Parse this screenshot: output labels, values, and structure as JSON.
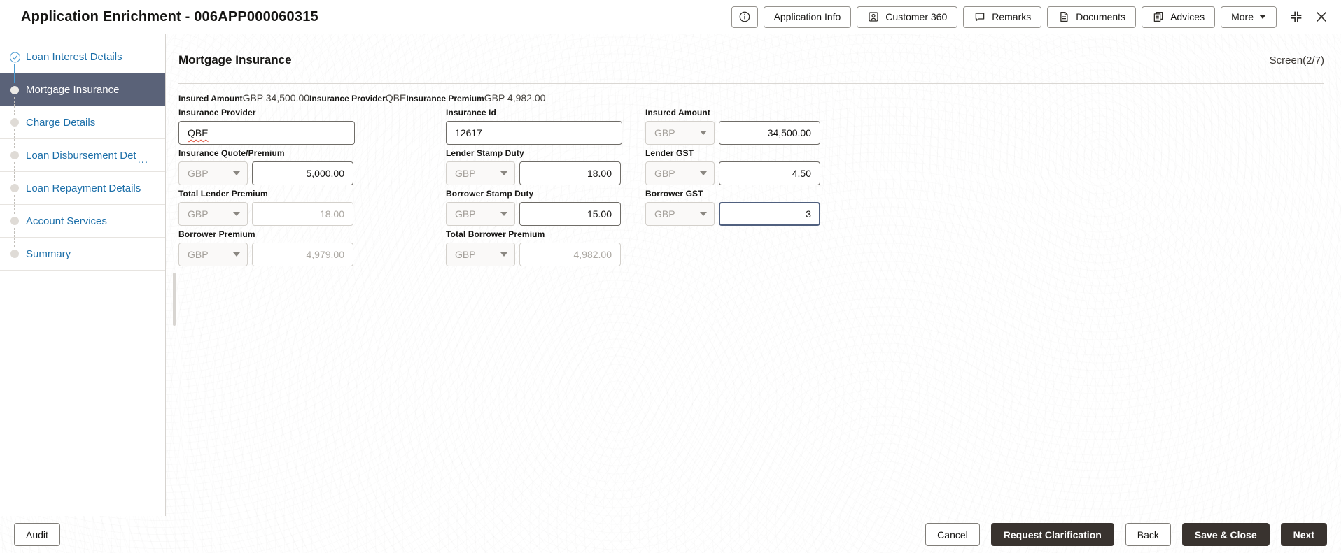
{
  "header": {
    "title": "Application Enrichment - 006APP000060315",
    "actions": {
      "application_info": "Application Info",
      "customer_360": "Customer 360",
      "remarks": "Remarks",
      "documents": "Documents",
      "advices": "Advices",
      "more": "More"
    }
  },
  "sidebar": {
    "items": [
      {
        "label": "Loan Interest Details",
        "state": "done"
      },
      {
        "label": "Mortgage Insurance",
        "state": "active"
      },
      {
        "label": "Charge Details",
        "state": "pending"
      },
      {
        "label": "Loan Disbursement Det",
        "state": "pending",
        "truncated": true,
        "truncated_indicator": "..."
      },
      {
        "label": "Loan Repayment Details",
        "state": "pending"
      },
      {
        "label": "Account Services",
        "state": "pending"
      },
      {
        "label": "Summary",
        "state": "pending"
      }
    ]
  },
  "content": {
    "heading": "Mortgage Insurance",
    "screen_indicator": "Screen(2/7)",
    "summary": [
      {
        "label": "Insured Amount ",
        "value": "GBP 34,500.00"
      },
      {
        "label": "Insurance Provider ",
        "value": "QBE"
      },
      {
        "label": "Insurance Premium ",
        "value": "GBP 4,982.00"
      }
    ],
    "fields": [
      {
        "label": "Insurance Provider",
        "type": "text",
        "value": "QBE",
        "state": "enabled",
        "squiggle": true
      },
      {
        "label": "Insurance Id",
        "type": "text",
        "value": "12617",
        "state": "enabled"
      },
      {
        "label": "Insured Amount",
        "type": "amount",
        "currency": "GBP",
        "value": "34,500.00",
        "state": "enabled"
      },
      {
        "label": "Insurance Quote/Premium",
        "type": "amount",
        "currency": "GBP",
        "value": "5,000.00",
        "state": "enabled"
      },
      {
        "label": "Lender Stamp Duty",
        "type": "amount",
        "currency": "GBP",
        "value": "18.00",
        "state": "enabled"
      },
      {
        "label": "Lender GST",
        "type": "amount",
        "currency": "GBP",
        "value": "4.50",
        "state": "enabled"
      },
      {
        "label": "Total Lender Premium",
        "type": "amount",
        "currency": "GBP",
        "value": "18.00",
        "state": "disabled"
      },
      {
        "label": "Borrower Stamp Duty",
        "type": "amount",
        "currency": "GBP",
        "value": "15.00",
        "state": "enabled"
      },
      {
        "label": "Borrower GST",
        "type": "amount",
        "currency": "GBP",
        "value": "3",
        "state": "focused"
      },
      {
        "label": "Borrower Premium",
        "type": "amount",
        "currency": "GBP",
        "value": "4,979.00",
        "state": "disabled"
      },
      {
        "label": "Total Borrower Premium",
        "type": "amount",
        "currency": "GBP",
        "value": "4,982.00",
        "state": "disabled"
      }
    ]
  },
  "footer": {
    "audit": "Audit",
    "cancel": "Cancel",
    "request_clarification": "Request Clarification",
    "back": "Back",
    "save_close": "Save & Close",
    "next": "Next"
  },
  "colors": {
    "active_step_bg": "#5a6278",
    "step_link_blue": "#1c6fa9",
    "done_check_blue": "#4a9bd1",
    "dark_button": "#39332f",
    "focus_border": "#50607f"
  },
  "icons": {
    "info": "circled letter i",
    "customer_360": "person id-card outline",
    "remarks": "speech bubble outline",
    "documents": "document page outline",
    "advices": "stacked documents outline",
    "more": "chevron-down triangle",
    "fullscreen": "four inward corner brackets",
    "close": "x cross",
    "done_step": "check mark in circle"
  }
}
